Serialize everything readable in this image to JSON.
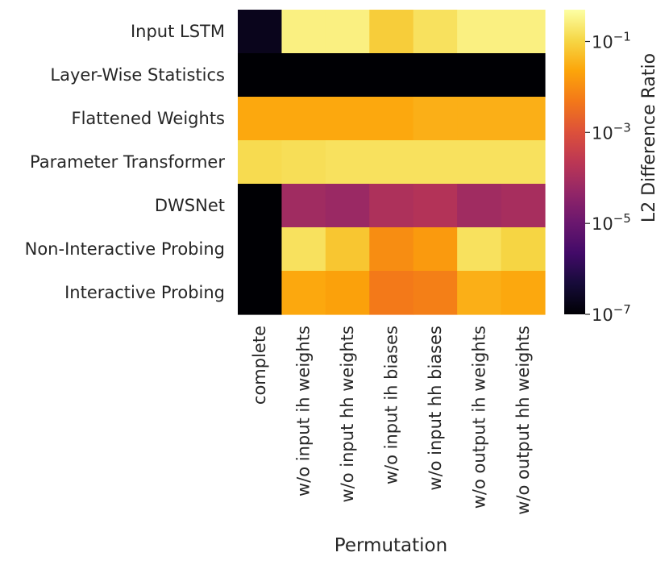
{
  "chart_data": {
    "type": "heatmap",
    "title": "",
    "xlabel": "Permutation",
    "ylabel": "",
    "rows": [
      "Input LSTM",
      "Layer-Wise Statistics",
      "Flattened Weights",
      "Parameter Transformer",
      "DWSNet",
      "Non-Interactive Probing",
      "Interactive Probing"
    ],
    "columns": [
      "complete",
      "w/o input ih weights",
      "w/o input hh weights",
      "w/o input ih biases",
      "w/o input hh biases",
      "w/o output ih weights",
      "w/o output hh weights"
    ],
    "values_log10": [
      [
        -6.7,
        -0.55,
        -0.55,
        -1.1,
        -0.8,
        -0.55,
        -0.55
      ],
      [
        -7.0,
        -7.0,
        -7.0,
        -7.0,
        -7.0,
        -7.0,
        -7.0
      ],
      [
        -1.6,
        -1.6,
        -1.6,
        -1.6,
        -1.5,
        -1.5,
        -1.5
      ],
      [
        -0.9,
        -0.85,
        -0.8,
        -0.8,
        -0.8,
        -0.8,
        -0.8
      ],
      [
        -7.0,
        -4.1,
        -4.2,
        -3.9,
        -3.8,
        -4.1,
        -4.0
      ],
      [
        -7.0,
        -0.8,
        -1.2,
        -2.0,
        -1.8,
        -0.8,
        -1.0
      ],
      [
        -7.0,
        -1.6,
        -1.7,
        -2.3,
        -2.2,
        -1.5,
        -1.6
      ]
    ],
    "colorbar": {
      "label": "L2 Difference Ratio",
      "scale": "log",
      "range_log10": [
        -7,
        -0.3
      ],
      "ticks_log10": [
        -7,
        -5,
        -3,
        -1
      ],
      "tick_labels": [
        "10",
        "10",
        "10",
        "10"
      ],
      "tick_exponents": [
        "−7",
        "−5",
        "−3",
        "−1"
      ],
      "colormap": "inferno"
    }
  }
}
